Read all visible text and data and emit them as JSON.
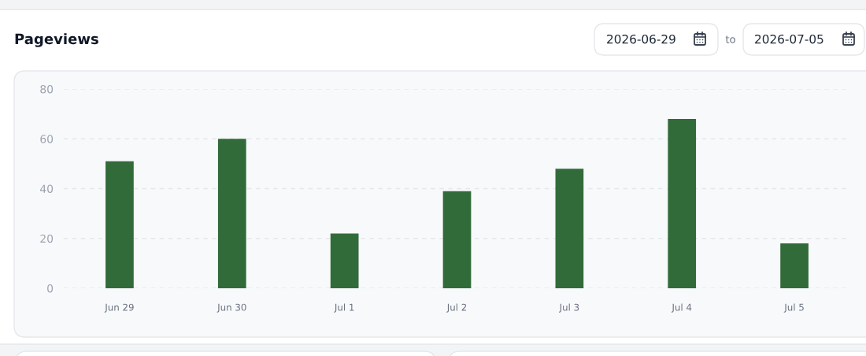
{
  "chart_data": {
    "type": "bar",
    "title": "Pageviews",
    "categories": [
      "Jun 29",
      "Jun 30",
      "Jul 1",
      "Jul 2",
      "Jul 3",
      "Jul 4",
      "Jul 5"
    ],
    "values": [
      51,
      60,
      22,
      39,
      48,
      68,
      18
    ],
    "color": "#326b3a",
    "ylim": [
      0,
      80
    ],
    "yticks": [
      0,
      20,
      40,
      60,
      80
    ],
    "grid": "y",
    "annotations": [
      "2026-06-29",
      "to",
      "2026-07-05"
    ]
  }
}
